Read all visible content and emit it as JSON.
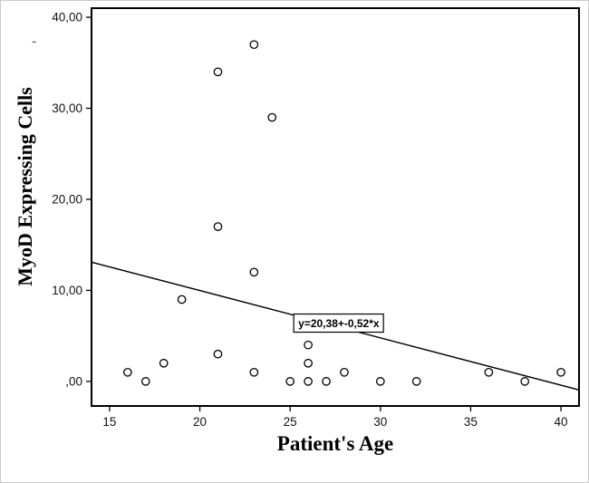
{
  "figure": {
    "stray_mark": "-"
  },
  "chart_data": {
    "type": "scatter",
    "title": "",
    "xlabel": "Patient's Age",
    "ylabel": "MyoD Expressing Cells",
    "xlim": [
      14,
      41
    ],
    "ylim": [
      -2.7,
      41.0
    ],
    "xticks": [
      15,
      20,
      25,
      30,
      35,
      40
    ],
    "xtick_labels": [
      "15",
      "20",
      "25",
      "30",
      "35",
      "40"
    ],
    "yticks": [
      0,
      10,
      20,
      30,
      40
    ],
    "ytick_labels": [
      ",00",
      "10,00",
      "20,00",
      "30,00",
      "40,00"
    ],
    "grid": false,
    "legend": null,
    "marker": "open-circle",
    "points": [
      [
        16,
        1
      ],
      [
        17,
        0
      ],
      [
        18,
        2
      ],
      [
        19,
        9
      ],
      [
        21,
        3
      ],
      [
        21,
        17
      ],
      [
        21,
        34
      ],
      [
        23,
        1
      ],
      [
        23,
        12
      ],
      [
        23,
        37
      ],
      [
        24,
        29
      ],
      [
        25,
        0
      ],
      [
        26,
        0
      ],
      [
        26,
        2
      ],
      [
        26,
        4
      ],
      [
        27,
        0
      ],
      [
        28,
        1
      ],
      [
        30,
        0
      ],
      [
        32,
        0
      ],
      [
        36,
        1
      ],
      [
        38,
        0
      ],
      [
        40,
        1
      ]
    ],
    "regression": {
      "equation_label": "y=20,38+-0,52*x",
      "intercept": 20.38,
      "slope": -0.52
    },
    "annotation": {
      "text": "y=20,38+-0,52*x",
      "x": 25.2,
      "y": 7.4
    }
  }
}
